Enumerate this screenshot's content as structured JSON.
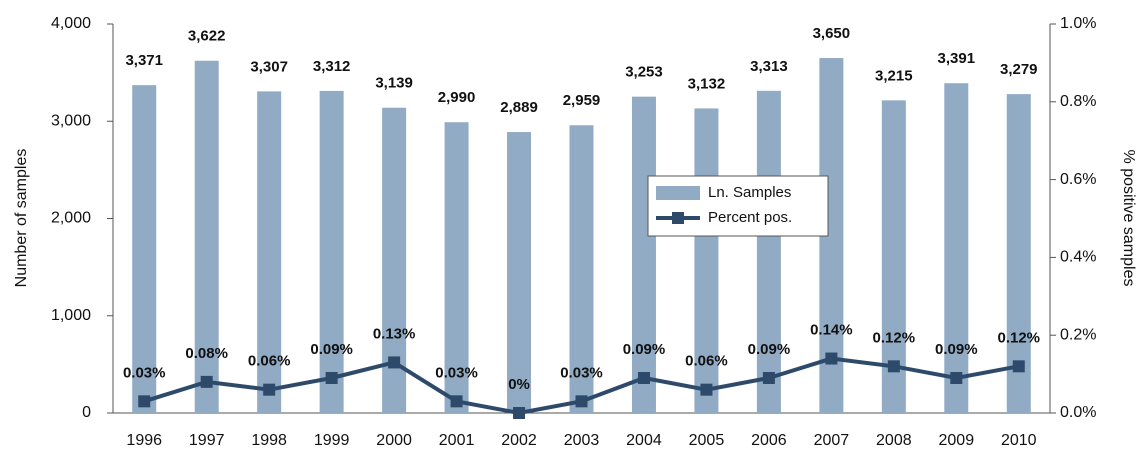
{
  "chart_data": {
    "type": "bar_line",
    "categories": [
      "1996",
      "1997",
      "1998",
      "1999",
      "2000",
      "2001",
      "2002",
      "2003",
      "2004",
      "2005",
      "2006",
      "2007",
      "2008",
      "2009",
      "2010"
    ],
    "series": [
      {
        "name": "Ln. Samples",
        "color": "#91abc5",
        "values": [
          3371,
          3622,
          3307,
          3312,
          3139,
          2990,
          2889,
          2959,
          3253,
          3132,
          3313,
          3650,
          3215,
          3391,
          3279
        ],
        "value_labels": [
          "3,371",
          "3,622",
          "3,307",
          "3,312",
          "3,139",
          "2,990",
          "2,889",
          "2,959",
          "3,253",
          "3,132",
          "3,313",
          "3,650",
          "3,215",
          "3,391",
          "3,279"
        ]
      },
      {
        "name": "Percent pos.",
        "color": "#2e4a6b",
        "axis": "y2",
        "values": [
          0.03,
          0.08,
          0.06,
          0.09,
          0.13,
          0.03,
          0,
          0.03,
          0.09,
          0.06,
          0.09,
          0.14,
          0.12,
          0.09,
          0.12
        ],
        "value_labels": [
          "0.03%",
          "0.08%",
          "0.06%",
          "0.09%",
          "0.13%",
          "0.03%",
          "0%",
          "0.03%",
          "0.09%",
          "0.06%",
          "0.09%",
          "0.14%",
          "0.12%",
          "0.09%",
          "0.12%"
        ]
      }
    ],
    "ylabel": "Number of samples",
    "y2label": "% positive samples",
    "ylim": [
      0,
      4000
    ],
    "yticks": [
      0,
      {
        "value": 1000,
        "label": "1,000"
      },
      {
        "value": 2000,
        "label": "2,000"
      },
      {
        "value": 3000,
        "label": "3,000"
      },
      {
        "value": 4000,
        "label": "4,000"
      }
    ],
    "y2lim": [
      0,
      1.0
    ],
    "y2ticks": [
      {
        "value": 0,
        "label": "0.0%"
      },
      {
        "value": 0.2,
        "label": "0.2%"
      },
      {
        "value": 0.4,
        "label": "0.4%"
      },
      {
        "value": 0.6,
        "label": "0.6%"
      },
      {
        "value": 0.8,
        "label": "0.8%"
      },
      {
        "value": 1.0,
        "label": "1.0%"
      }
    ]
  }
}
